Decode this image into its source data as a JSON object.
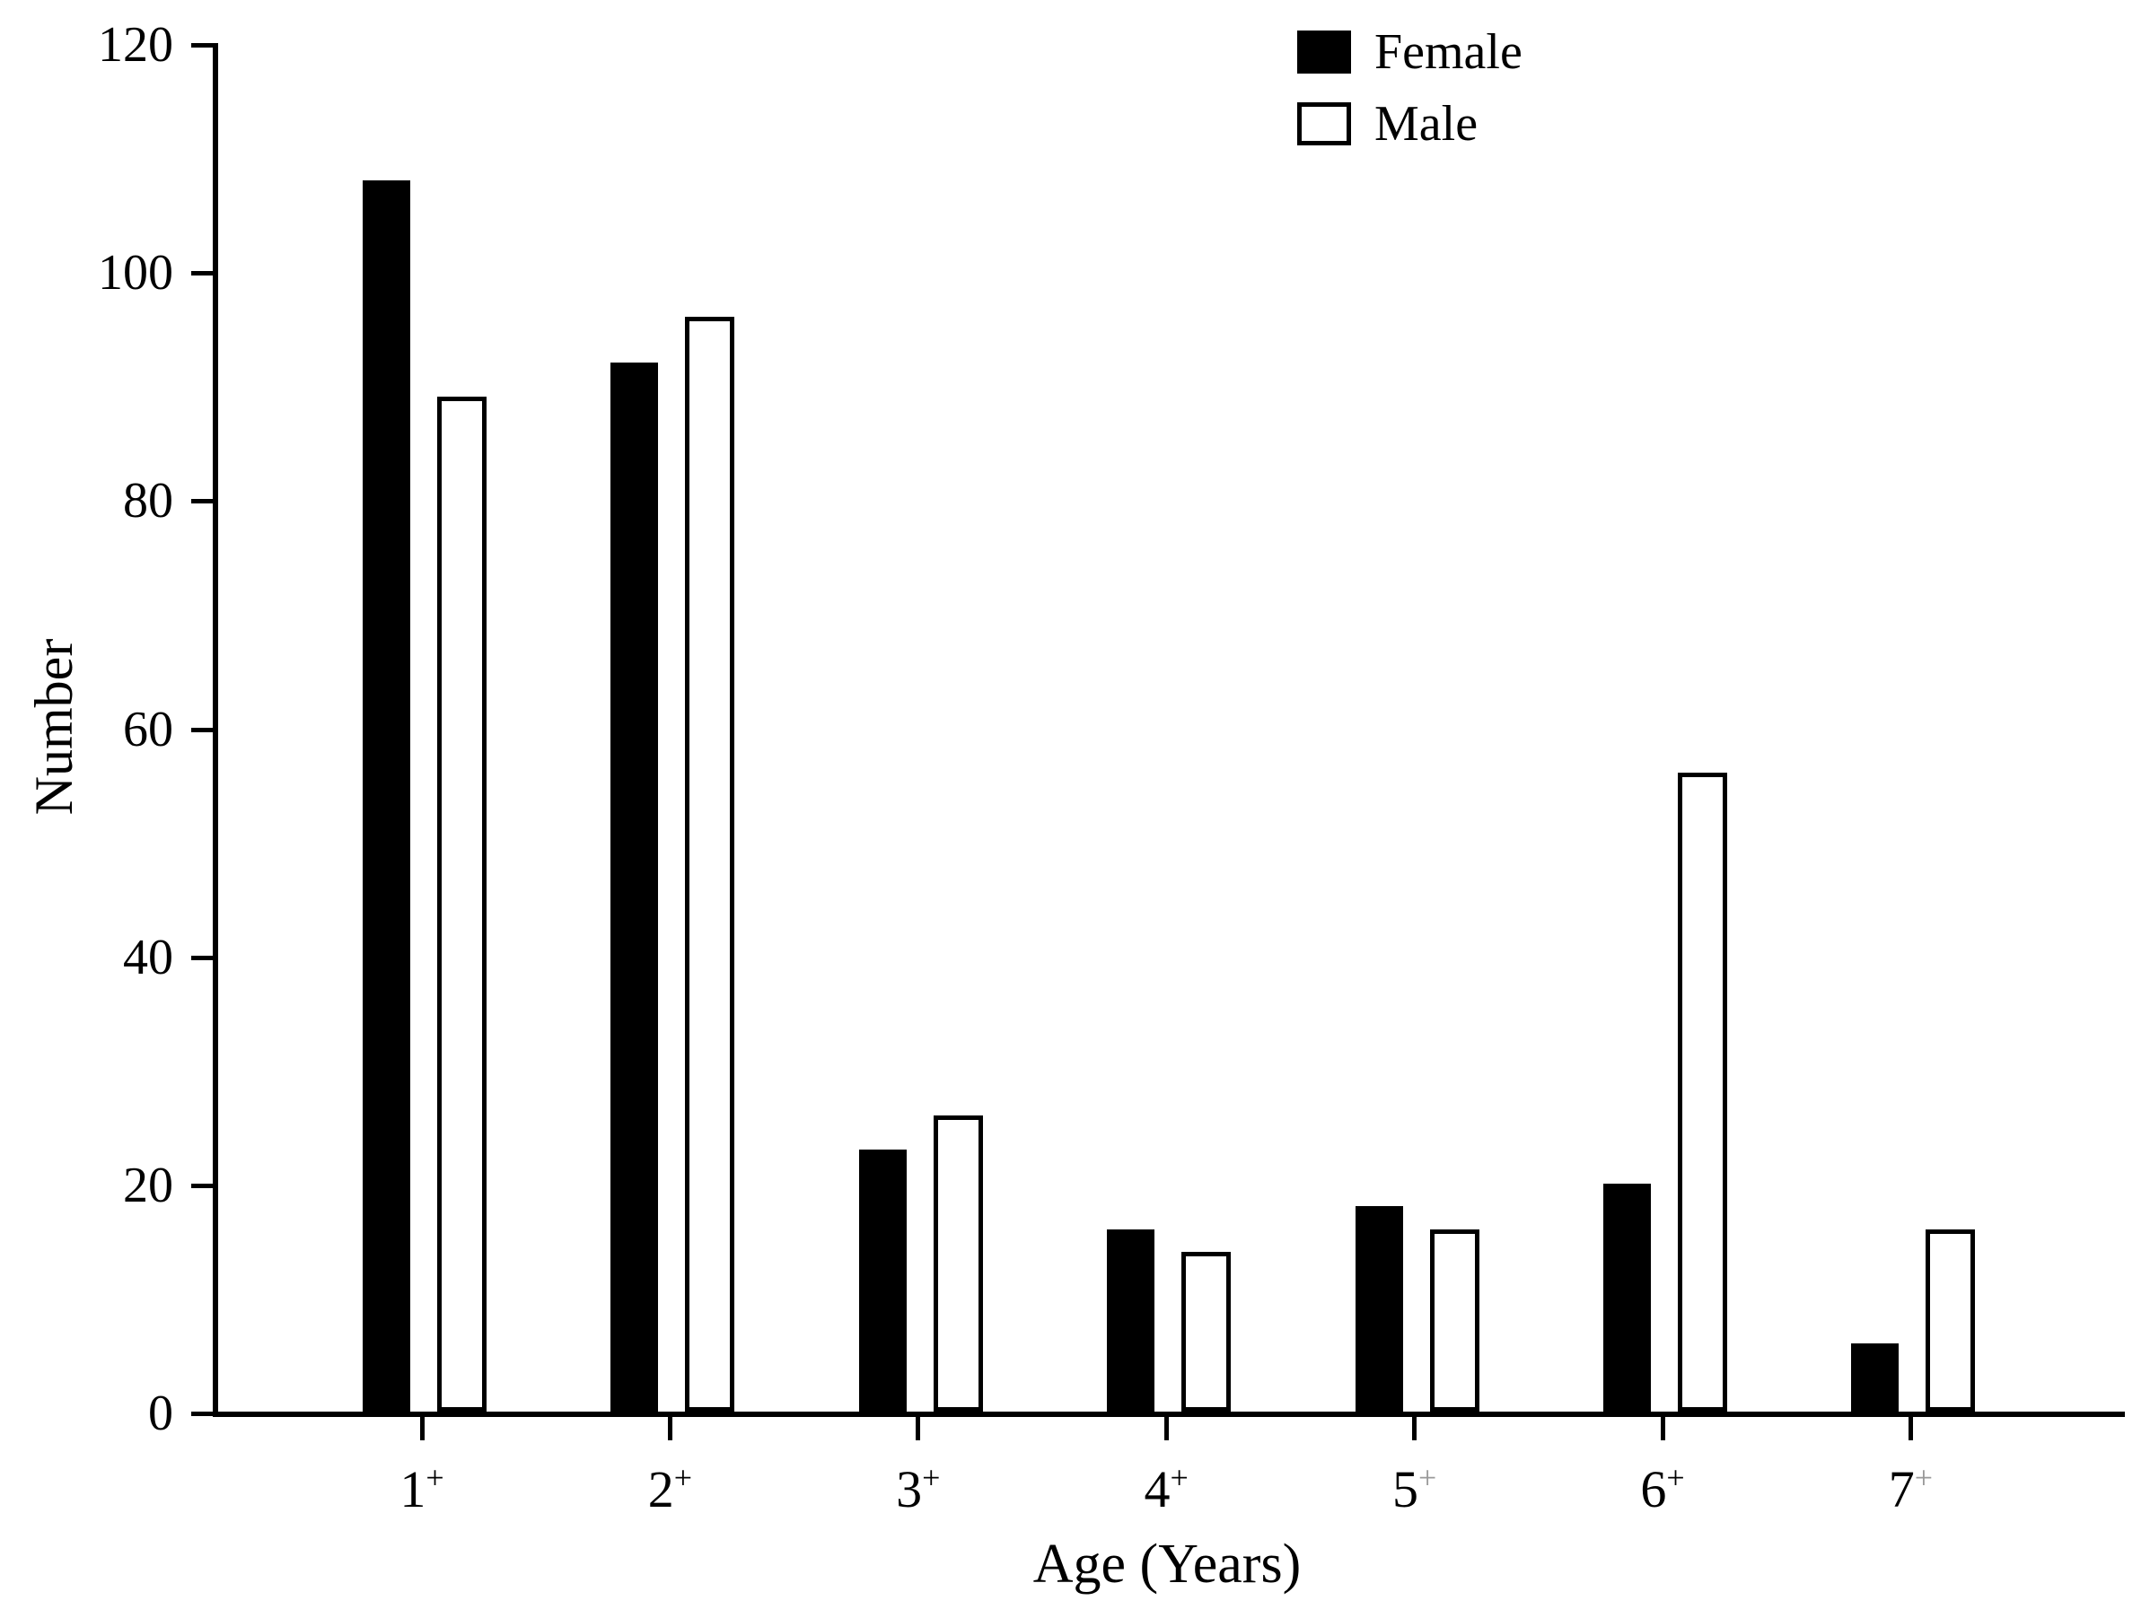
{
  "chart_data": {
    "type": "bar",
    "title": "",
    "xlabel": "Age (Years)",
    "ylabel": "Number",
    "categories": [
      {
        "label": "1",
        "sup": "+",
        "sup_faint": false
      },
      {
        "label": "2",
        "sup": "+",
        "sup_faint": false
      },
      {
        "label": "3",
        "sup": "+",
        "sup_faint": false
      },
      {
        "label": "4",
        "sup": "+",
        "sup_faint": false
      },
      {
        "label": "5",
        "sup": "+",
        "sup_faint": true
      },
      {
        "label": "6",
        "sup": "+",
        "sup_faint": false
      },
      {
        "label": "7",
        "sup": "+",
        "sup_faint": true
      }
    ],
    "series": [
      {
        "name": "Female",
        "fill": "#000000",
        "values": [
          108,
          92,
          23,
          16,
          18,
          20,
          6
        ]
      },
      {
        "name": "Male",
        "fill": "#ffffff",
        "border": "#000000",
        "values": [
          89,
          96,
          26,
          14,
          16,
          56,
          16
        ]
      }
    ],
    "ylim": [
      0,
      120
    ],
    "y_ticks": [
      0,
      20,
      40,
      60,
      80,
      100,
      120
    ],
    "grid": false,
    "legend_position": "top-right",
    "colors": {
      "foreground": "#000000",
      "background": "#ffffff",
      "faint_sup": "#999999"
    }
  }
}
